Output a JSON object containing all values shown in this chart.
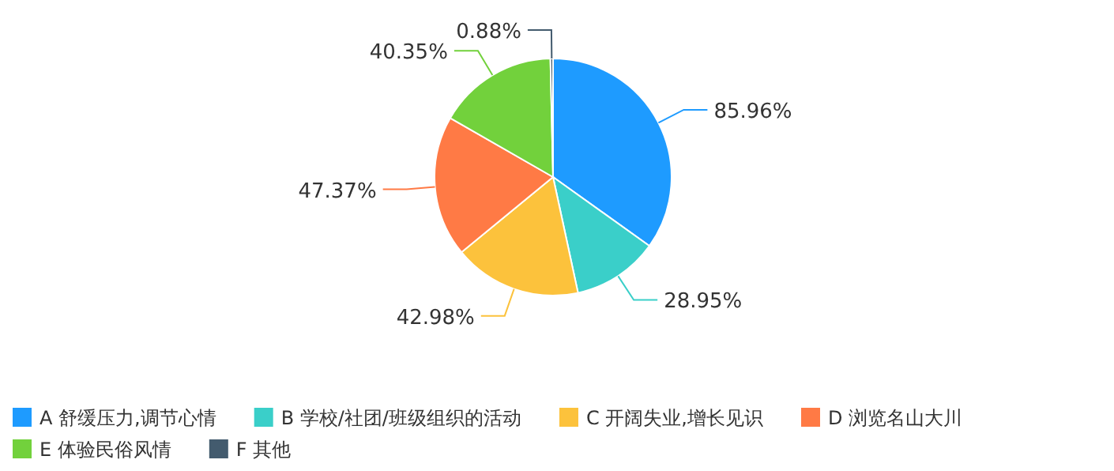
{
  "chart_data": {
    "type": "pie",
    "categories": [
      "A 舒缓压力,调节心情",
      "B 学校/社团/班级组织的活动",
      "C 开阔失业,增长见识",
      "D 浏览名山大川",
      "E 体验民俗风情",
      "F 其他"
    ],
    "values": [
      85.96,
      28.95,
      42.98,
      47.37,
      40.35,
      0.88
    ],
    "value_labels": [
      "85.96%",
      "28.95%",
      "42.98%",
      "47.37%",
      "40.35%",
      "0.88%"
    ],
    "colors": [
      "#1e9bff",
      "#3acfc9",
      "#fcc23c",
      "#ff7a45",
      "#72d13c",
      "#435b6e"
    ],
    "legend": "bottom"
  }
}
